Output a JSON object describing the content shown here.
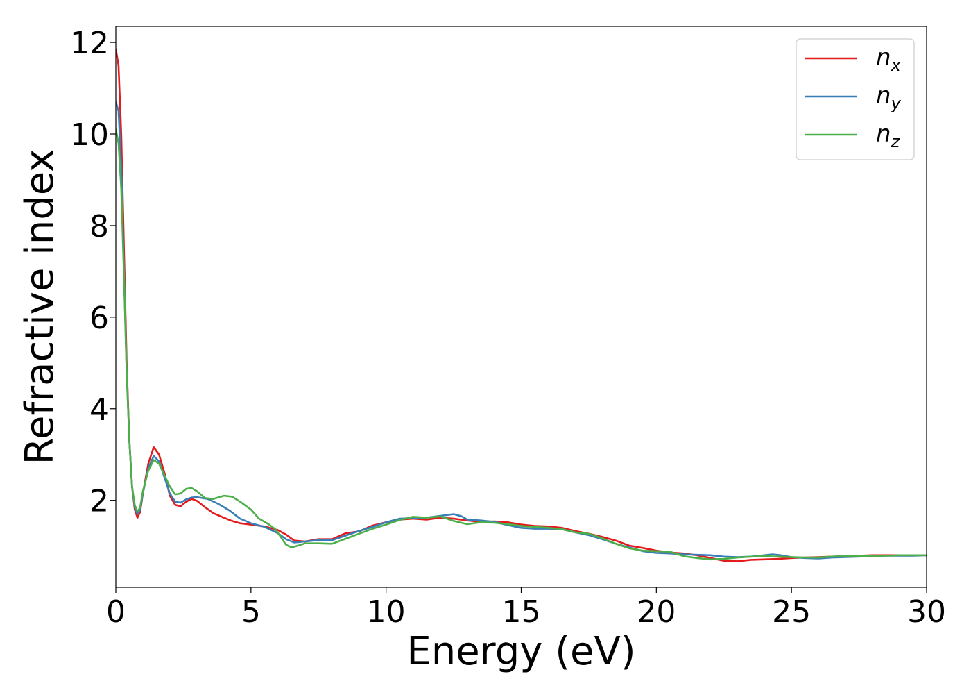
{
  "chart_data": {
    "type": "line",
    "title": "",
    "xlabel": "Energy (eV)",
    "ylabel": "Refractive index",
    "xlim": [
      0,
      30
    ],
    "ylim": [
      0.1,
      12.35
    ],
    "xticks": [
      0,
      5,
      10,
      15,
      20,
      25,
      30
    ],
    "xtick_labels": [
      "0",
      "5",
      "10",
      "15",
      "20",
      "25",
      "30"
    ],
    "yticks": [
      2,
      4,
      6,
      8,
      10,
      12
    ],
    "ytick_labels": [
      "2",
      "4",
      "6",
      "8",
      "10",
      "12"
    ],
    "grid": false,
    "legend_position": "top-right",
    "series": [
      {
        "name": "n",
        "subscript": "x",
        "color": "#e41a1c",
        "points": [
          [
            0,
            11.85
          ],
          [
            0.1,
            11.5
          ],
          [
            0.2,
            10.0
          ],
          [
            0.3,
            7.5
          ],
          [
            0.4,
            5.0
          ],
          [
            0.5,
            3.3
          ],
          [
            0.6,
            2.3
          ],
          [
            0.7,
            1.8
          ],
          [
            0.8,
            1.62
          ],
          [
            0.9,
            1.75
          ],
          [
            1.0,
            2.15
          ],
          [
            1.2,
            2.8
          ],
          [
            1.4,
            3.16
          ],
          [
            1.6,
            3.0
          ],
          [
            1.8,
            2.6
          ],
          [
            2.0,
            2.1
          ],
          [
            2.2,
            1.9
          ],
          [
            2.4,
            1.87
          ],
          [
            2.6,
            1.97
          ],
          [
            2.8,
            2.03
          ],
          [
            3.0,
            1.99
          ],
          [
            3.3,
            1.85
          ],
          [
            3.6,
            1.72
          ],
          [
            4.0,
            1.62
          ],
          [
            4.3,
            1.55
          ],
          [
            4.6,
            1.5
          ],
          [
            5.0,
            1.47
          ],
          [
            5.5,
            1.43
          ],
          [
            6.0,
            1.35
          ],
          [
            6.3,
            1.25
          ],
          [
            6.6,
            1.12
          ],
          [
            7.0,
            1.1
          ],
          [
            7.5,
            1.15
          ],
          [
            8.0,
            1.15
          ],
          [
            8.5,
            1.28
          ],
          [
            9.0,
            1.32
          ],
          [
            9.5,
            1.45
          ],
          [
            10.0,
            1.52
          ],
          [
            10.5,
            1.58
          ],
          [
            11.0,
            1.6
          ],
          [
            11.5,
            1.58
          ],
          [
            12.0,
            1.62
          ],
          [
            12.5,
            1.6
          ],
          [
            13.0,
            1.56
          ],
          [
            13.5,
            1.53
          ],
          [
            14.0,
            1.54
          ],
          [
            14.5,
            1.52
          ],
          [
            15.0,
            1.47
          ],
          [
            15.5,
            1.44
          ],
          [
            16.0,
            1.43
          ],
          [
            16.5,
            1.4
          ],
          [
            17.0,
            1.33
          ],
          [
            17.5,
            1.27
          ],
          [
            18.0,
            1.2
          ],
          [
            18.5,
            1.12
          ],
          [
            19.0,
            1.01
          ],
          [
            19.5,
            0.96
          ],
          [
            20.0,
            0.9
          ],
          [
            20.5,
            0.86
          ],
          [
            21.0,
            0.84
          ],
          [
            21.5,
            0.8
          ],
          [
            22.0,
            0.74
          ],
          [
            22.5,
            0.68
          ],
          [
            23.0,
            0.67
          ],
          [
            23.5,
            0.7
          ],
          [
            24.0,
            0.71
          ],
          [
            24.5,
            0.72
          ],
          [
            25.0,
            0.74
          ],
          [
            25.5,
            0.75
          ],
          [
            26.0,
            0.76
          ],
          [
            26.5,
            0.77
          ],
          [
            27.0,
            0.78
          ],
          [
            27.5,
            0.79
          ],
          [
            28.0,
            0.8
          ],
          [
            28.5,
            0.8
          ],
          [
            29.0,
            0.8
          ],
          [
            29.5,
            0.8
          ],
          [
            30.0,
            0.8
          ]
        ]
      },
      {
        "name": "n",
        "subscript": "y",
        "color": "#377eb8",
        "points": [
          [
            0,
            10.7
          ],
          [
            0.1,
            10.5
          ],
          [
            0.2,
            9.3
          ],
          [
            0.3,
            7.0
          ],
          [
            0.4,
            4.8
          ],
          [
            0.5,
            3.3
          ],
          [
            0.6,
            2.3
          ],
          [
            0.7,
            1.85
          ],
          [
            0.8,
            1.7
          ],
          [
            0.9,
            1.8
          ],
          [
            1.0,
            2.15
          ],
          [
            1.2,
            2.7
          ],
          [
            1.4,
            2.97
          ],
          [
            1.6,
            2.85
          ],
          [
            1.8,
            2.5
          ],
          [
            2.0,
            2.15
          ],
          [
            2.2,
            1.97
          ],
          [
            2.4,
            1.95
          ],
          [
            2.6,
            2.02
          ],
          [
            2.8,
            2.06
          ],
          [
            3.0,
            2.07
          ],
          [
            3.4,
            2.03
          ],
          [
            3.8,
            1.92
          ],
          [
            4.2,
            1.78
          ],
          [
            4.6,
            1.6
          ],
          [
            5.0,
            1.5
          ],
          [
            5.5,
            1.42
          ],
          [
            6.0,
            1.28
          ],
          [
            6.3,
            1.15
          ],
          [
            6.6,
            1.08
          ],
          [
            7.0,
            1.1
          ],
          [
            7.5,
            1.13
          ],
          [
            8.0,
            1.13
          ],
          [
            8.5,
            1.23
          ],
          [
            9.0,
            1.33
          ],
          [
            9.5,
            1.42
          ],
          [
            10.0,
            1.52
          ],
          [
            10.5,
            1.6
          ],
          [
            11.0,
            1.61
          ],
          [
            11.5,
            1.62
          ],
          [
            12.0,
            1.66
          ],
          [
            12.5,
            1.7
          ],
          [
            12.8,
            1.65
          ],
          [
            13.0,
            1.58
          ],
          [
            13.5,
            1.56
          ],
          [
            14.0,
            1.53
          ],
          [
            14.5,
            1.46
          ],
          [
            15.0,
            1.4
          ],
          [
            15.5,
            1.38
          ],
          [
            16.0,
            1.38
          ],
          [
            16.5,
            1.37
          ],
          [
            17.0,
            1.3
          ],
          [
            17.5,
            1.24
          ],
          [
            18.0,
            1.15
          ],
          [
            18.5,
            1.05
          ],
          [
            19.0,
            0.97
          ],
          [
            19.5,
            0.89
          ],
          [
            20.0,
            0.85
          ],
          [
            20.5,
            0.84
          ],
          [
            21.0,
            0.82
          ],
          [
            21.5,
            0.81
          ],
          [
            22.0,
            0.8
          ],
          [
            22.5,
            0.77
          ],
          [
            23.0,
            0.76
          ],
          [
            23.5,
            0.77
          ],
          [
            24.0,
            0.8
          ],
          [
            24.3,
            0.82
          ],
          [
            24.6,
            0.8
          ],
          [
            25.0,
            0.76
          ],
          [
            25.5,
            0.74
          ],
          [
            26.0,
            0.73
          ],
          [
            26.5,
            0.75
          ],
          [
            27.0,
            0.76
          ],
          [
            27.5,
            0.77
          ],
          [
            28.0,
            0.78
          ],
          [
            28.5,
            0.79
          ],
          [
            29.0,
            0.79
          ],
          [
            29.5,
            0.79
          ],
          [
            30.0,
            0.8
          ]
        ]
      },
      {
        "name": "n",
        "subscript": "z",
        "color": "#4daf4a",
        "points": [
          [
            0,
            10.1
          ],
          [
            0.1,
            9.8
          ],
          [
            0.2,
            8.8
          ],
          [
            0.3,
            6.9
          ],
          [
            0.4,
            4.8
          ],
          [
            0.5,
            3.3
          ],
          [
            0.6,
            2.3
          ],
          [
            0.7,
            1.9
          ],
          [
            0.8,
            1.75
          ],
          [
            0.9,
            1.85
          ],
          [
            1.0,
            2.2
          ],
          [
            1.2,
            2.65
          ],
          [
            1.4,
            2.88
          ],
          [
            1.6,
            2.8
          ],
          [
            1.8,
            2.55
          ],
          [
            2.0,
            2.3
          ],
          [
            2.2,
            2.13
          ],
          [
            2.4,
            2.15
          ],
          [
            2.6,
            2.25
          ],
          [
            2.8,
            2.27
          ],
          [
            3.0,
            2.2
          ],
          [
            3.3,
            2.05
          ],
          [
            3.6,
            2.03
          ],
          [
            4.0,
            2.1
          ],
          [
            4.3,
            2.08
          ],
          [
            4.6,
            1.97
          ],
          [
            5.0,
            1.8
          ],
          [
            5.3,
            1.6
          ],
          [
            5.6,
            1.5
          ],
          [
            5.9,
            1.37
          ],
          [
            6.1,
            1.2
          ],
          [
            6.3,
            1.03
          ],
          [
            6.5,
            0.97
          ],
          [
            6.8,
            1.02
          ],
          [
            7.0,
            1.06
          ],
          [
            7.5,
            1.06
          ],
          [
            8.0,
            1.05
          ],
          [
            8.5,
            1.16
          ],
          [
            9.0,
            1.27
          ],
          [
            9.5,
            1.38
          ],
          [
            10.0,
            1.47
          ],
          [
            10.5,
            1.57
          ],
          [
            11.0,
            1.64
          ],
          [
            11.5,
            1.62
          ],
          [
            12.0,
            1.65
          ],
          [
            12.5,
            1.55
          ],
          [
            13.0,
            1.48
          ],
          [
            13.5,
            1.52
          ],
          [
            14.0,
            1.51
          ],
          [
            14.5,
            1.48
          ],
          [
            15.0,
            1.44
          ],
          [
            15.5,
            1.42
          ],
          [
            16.0,
            1.4
          ],
          [
            16.5,
            1.37
          ],
          [
            17.0,
            1.3
          ],
          [
            17.5,
            1.27
          ],
          [
            18.0,
            1.17
          ],
          [
            18.5,
            1.05
          ],
          [
            19.0,
            0.95
          ],
          [
            19.5,
            0.9
          ],
          [
            20.0,
            0.89
          ],
          [
            20.5,
            0.88
          ],
          [
            21.0,
            0.78
          ],
          [
            21.5,
            0.74
          ],
          [
            22.0,
            0.71
          ],
          [
            22.5,
            0.72
          ],
          [
            23.0,
            0.75
          ],
          [
            23.5,
            0.77
          ],
          [
            24.0,
            0.78
          ],
          [
            24.5,
            0.77
          ],
          [
            25.0,
            0.76
          ],
          [
            25.5,
            0.75
          ],
          [
            26.0,
            0.75
          ],
          [
            26.5,
            0.77
          ],
          [
            27.0,
            0.78
          ],
          [
            27.5,
            0.78
          ],
          [
            28.0,
            0.78
          ],
          [
            28.5,
            0.79
          ],
          [
            29.0,
            0.8
          ],
          [
            29.5,
            0.8
          ],
          [
            30.0,
            0.8
          ]
        ]
      }
    ]
  }
}
